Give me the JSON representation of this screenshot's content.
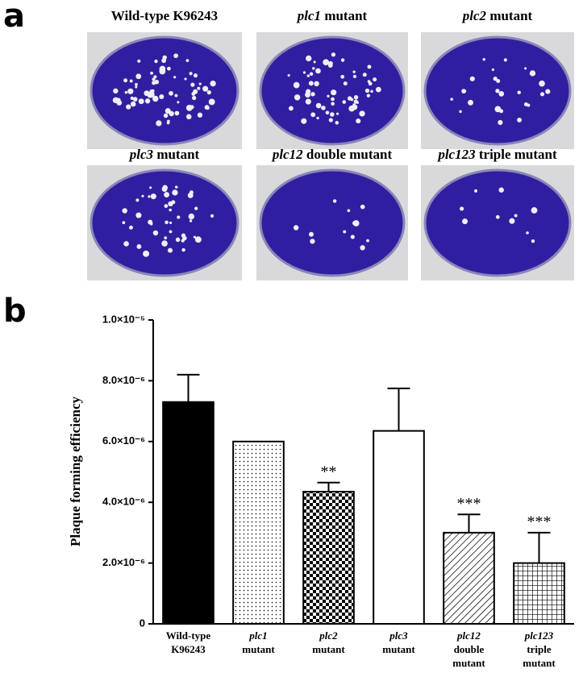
{
  "panel_a": {
    "label": "a",
    "plates": [
      "Wild-type K96243",
      "plc1 mutant",
      "plc2 mutant",
      "plc3 mutant",
      "plc12 double mutant",
      "plc123 triple mutant"
    ]
  },
  "chart_data": {
    "type": "bar",
    "panel_label": "b",
    "y_label": "Plaque forming efficiency",
    "categories": [
      "Wild-type K96243",
      "plc1 mutant",
      "plc2 mutant",
      "plc3 mutant",
      "plc12 double mutant",
      "plc123 triple mutant"
    ],
    "values": [
      7.3e-06,
      6e-06,
      4.35e-06,
      6.35e-06,
      3e-06,
      2e-06
    ],
    "errors": [
      9e-07,
      null,
      3e-07,
      1.4e-06,
      6e-07,
      1e-06
    ],
    "significance": [
      null,
      null,
      "**",
      null,
      "***",
      "***"
    ],
    "fills": [
      "solid",
      "dots",
      "checker",
      "none",
      "hatch",
      "grid"
    ],
    "color": "#000000",
    "ylim": [
      0,
      1e-05
    ],
    "yticks": [
      0,
      {
        "value": 2e-06,
        "label": "2.0×10⁻⁶"
      },
      {
        "value": 4e-06,
        "label": "4.0×10⁻⁶"
      },
      {
        "value": 6e-06,
        "label": "6.0×10⁻⁶"
      },
      {
        "value": 8e-06,
        "label": "8.0×10⁻⁶"
      },
      {
        "value": 1e-05,
        "label": "1.0×10⁻⁵"
      }
    ]
  }
}
